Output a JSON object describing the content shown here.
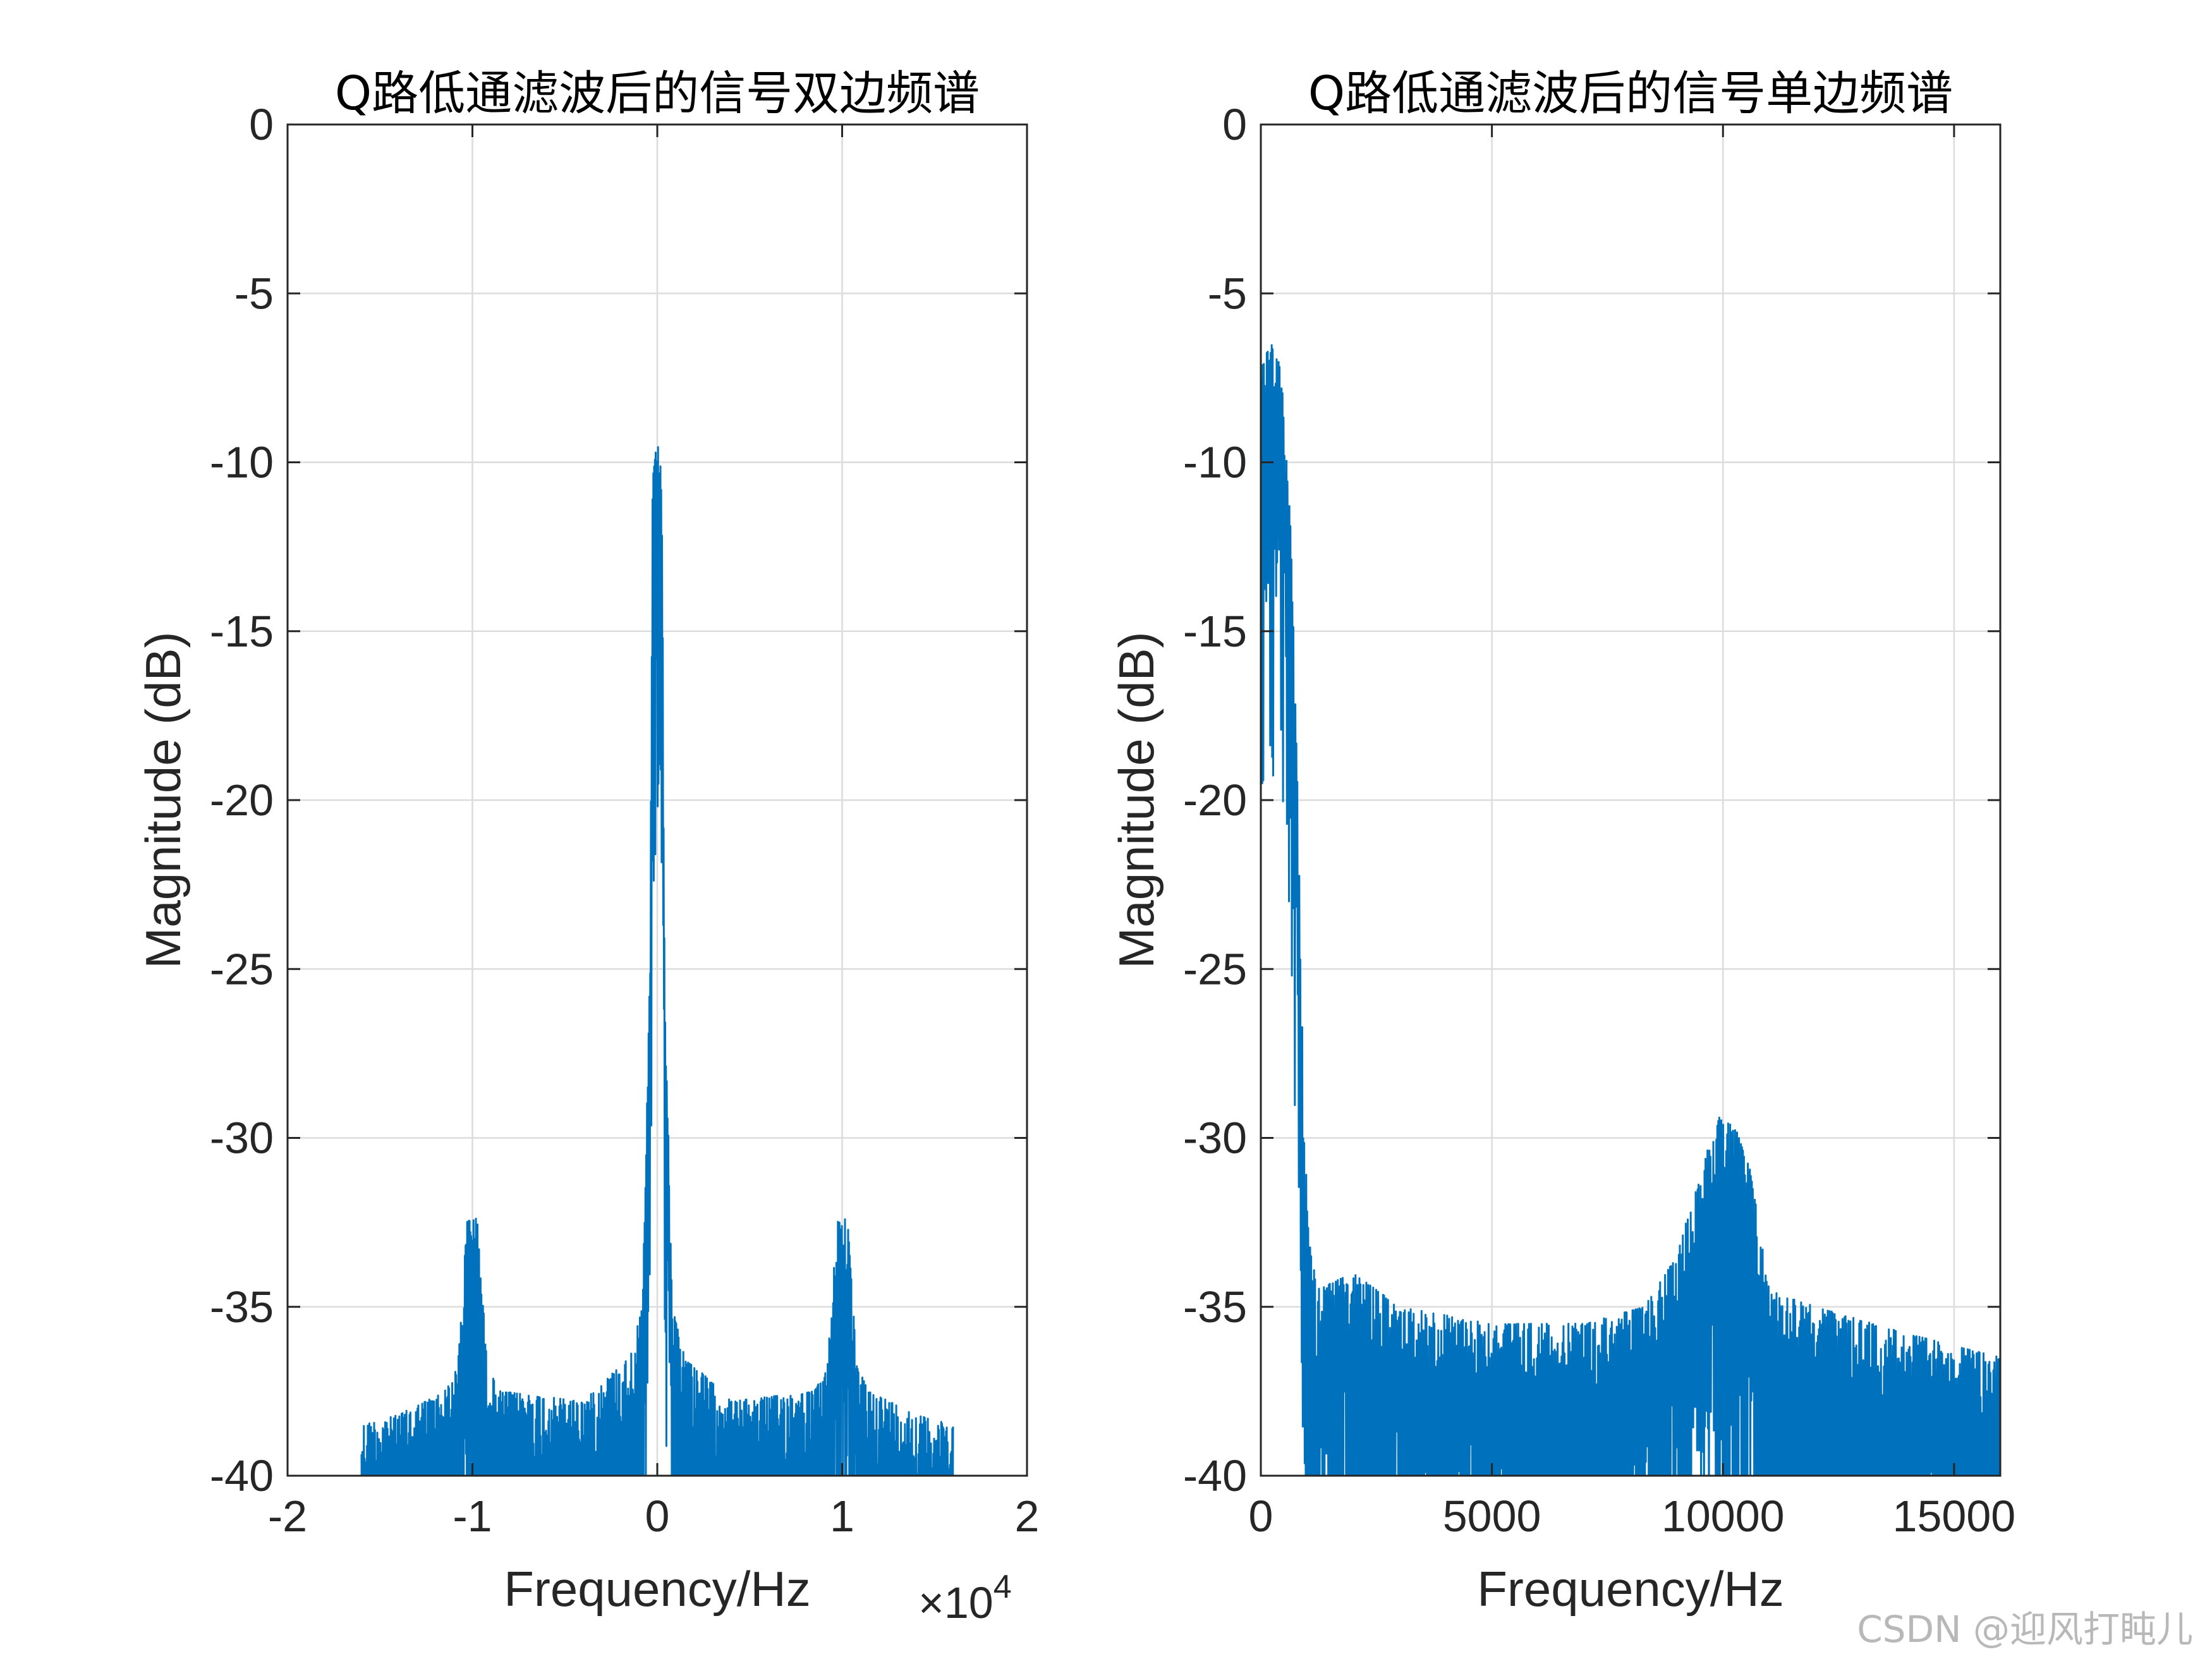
{
  "chart_data": [
    {
      "type": "line",
      "title": "Q路低通滤波后的信号双边频谱",
      "xlabel": "Frequency/Hz",
      "ylabel": "Magnitude (dB)",
      "xlim": [
        -20000,
        20000
      ],
      "ylim": [
        -40,
        0
      ],
      "x_scale_label": "×10",
      "x_scale_exponent": "4",
      "xticks": [
        -20000,
        -10000,
        0,
        10000,
        20000
      ],
      "xtick_labels": [
        "-2",
        "-1",
        "0",
        "1",
        "2"
      ],
      "yticks": [
        0,
        -5,
        -10,
        -15,
        -20,
        -25,
        -30,
        -35,
        -40
      ],
      "ytick_labels": [
        "0",
        "-5",
        "-10",
        "-15",
        "-20",
        "-25",
        "-30",
        "-35",
        "-40"
      ],
      "grid": true,
      "line_color": "#0072BD",
      "x_range_data": [
        -16000,
        16000
      ],
      "floor_db": -40,
      "envelope": [
        [
          -16000,
          -38.5
        ],
        [
          -14000,
          -38.2
        ],
        [
          -11500,
          -37.5
        ],
        [
          -10800,
          -36.8
        ],
        [
          -10300,
          -32.5
        ],
        [
          -10000,
          -32.2
        ],
        [
          -9700,
          -32.5
        ],
        [
          -9200,
          -36.8
        ],
        [
          -8500,
          -37.5
        ],
        [
          -4000,
          -37.8
        ],
        [
          -2500,
          -37.0
        ],
        [
          -1500,
          -36.5
        ],
        [
          -800,
          -35.0
        ],
        [
          -400,
          -25.0
        ],
        [
          -250,
          -10.5
        ],
        [
          0,
          -9.3
        ],
        [
          250,
          -10.5
        ],
        [
          400,
          -25.0
        ],
        [
          800,
          -35.0
        ],
        [
          1500,
          -36.5
        ],
        [
          2500,
          -37.0
        ],
        [
          4000,
          -37.8
        ],
        [
          8500,
          -37.5
        ],
        [
          9200,
          -36.8
        ],
        [
          9700,
          -32.5
        ],
        [
          10000,
          -32.2
        ],
        [
          10300,
          -32.5
        ],
        [
          10800,
          -36.8
        ],
        [
          11500,
          -37.5
        ],
        [
          14000,
          -38.2
        ],
        [
          16000,
          -38.5
        ]
      ]
    },
    {
      "type": "line",
      "title": "Q路低通滤波后的信号单边频谱",
      "xlabel": "Frequency/Hz",
      "ylabel": "Magnitude (dB)",
      "xlim": [
        0,
        16000
      ],
      "ylim": [
        -40,
        0
      ],
      "xticks": [
        0,
        5000,
        10000,
        15000
      ],
      "xtick_labels": [
        "0",
        "5000",
        "10000",
        "15000"
      ],
      "yticks": [
        0,
        -5,
        -10,
        -15,
        -20,
        -25,
        -30,
        -35,
        -40
      ],
      "ytick_labels": [
        "0",
        "-5",
        "-10",
        "-15",
        "-20",
        "-25",
        "-30",
        "-35",
        "-40"
      ],
      "grid": true,
      "line_color": "#0072BD",
      "x_range_data": [
        0,
        16000
      ],
      "floor_db": -40,
      "envelope": [
        [
          0,
          -7.0
        ],
        [
          300,
          -6.4
        ],
        [
          450,
          -7.5
        ],
        [
          650,
          -12.0
        ],
        [
          800,
          -20.0
        ],
        [
          900,
          -27.0
        ],
        [
          1000,
          -32.0
        ],
        [
          1200,
          -34.5
        ],
        [
          2000,
          -34.0
        ],
        [
          3000,
          -35.0
        ],
        [
          5000,
          -35.5
        ],
        [
          7000,
          -35.5
        ],
        [
          8300,
          -35.0
        ],
        [
          9000,
          -33.5
        ],
        [
          9500,
          -31.0
        ],
        [
          9900,
          -29.4
        ],
        [
          10200,
          -29.4
        ],
        [
          10600,
          -31.0
        ],
        [
          11000,
          -34.5
        ],
        [
          12000,
          -35.0
        ],
        [
          14000,
          -35.8
        ],
        [
          16000,
          -36.5
        ]
      ]
    }
  ],
  "watermark": "CSDN @迎风打盹儿"
}
